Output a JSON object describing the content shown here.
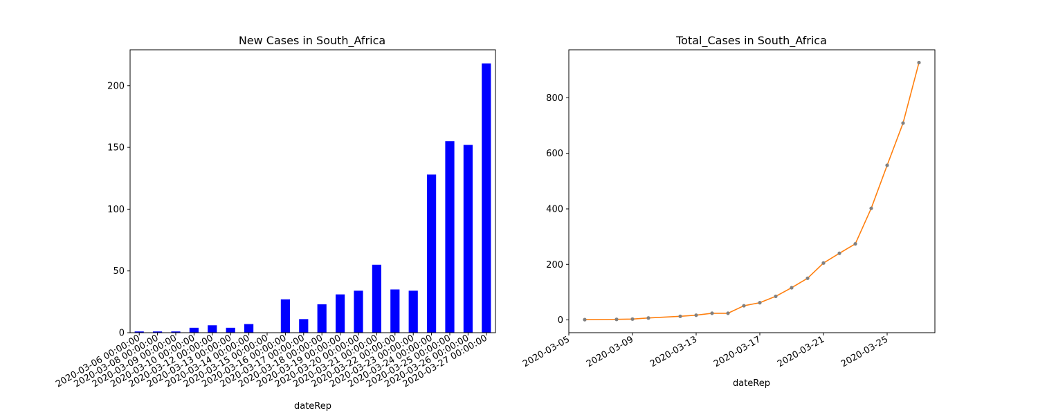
{
  "chart_data": [
    {
      "type": "bar",
      "title": "New Cases in South_Africa",
      "xlabel": "dateRep",
      "ylabel": "",
      "categories": [
        "2020-03-06 00:00:00",
        "2020-03-08 00:00:00",
        "2020-03-09 00:00:00",
        "2020-03-10 00:00:00",
        "2020-03-12 00:00:00",
        "2020-03-13 00:00:00",
        "2020-03-14 00:00:00",
        "2020-03-15 00:00:00",
        "2020-03-16 00:00:00",
        "2020-03-17 00:00:00",
        "2020-03-18 00:00:00",
        "2020-03-19 00:00:00",
        "2020-03-20 00:00:00",
        "2020-03-21 00:00:00",
        "2020-03-22 00:00:00",
        "2020-03-23 00:00:00",
        "2020-03-24 00:00:00",
        "2020-03-25 00:00:00",
        "2020-03-26 00:00:00",
        "2020-03-27 00:00:00"
      ],
      "values": [
        1,
        1,
        1,
        4,
        6,
        4,
        7,
        0,
        27,
        11,
        23,
        31,
        34,
        55,
        35,
        34,
        128,
        155,
        152,
        218
      ],
      "ylim": [
        0,
        229
      ],
      "yticks": [
        0,
        50,
        100,
        150,
        200
      ],
      "bar_color": "#0000ff",
      "grid": false
    },
    {
      "type": "line",
      "title": "Total_Cases in South_Africa",
      "xlabel": "dateRep",
      "ylabel": "",
      "x": [
        "2020-03-06",
        "2020-03-08",
        "2020-03-09",
        "2020-03-10",
        "2020-03-12",
        "2020-03-13",
        "2020-03-14",
        "2020-03-15",
        "2020-03-16",
        "2020-03-17",
        "2020-03-18",
        "2020-03-19",
        "2020-03-20",
        "2020-03-21",
        "2020-03-22",
        "2020-03-23",
        "2020-03-24",
        "2020-03-25",
        "2020-03-26",
        "2020-03-27"
      ],
      "values": [
        1,
        2,
        3,
        7,
        13,
        17,
        24,
        24,
        51,
        62,
        85,
        116,
        150,
        205,
        240,
        274,
        402,
        557,
        709,
        927
      ],
      "xlim": [
        "2020-03-05",
        "2020-03-28"
      ],
      "xticks": [
        "2020-03-05",
        "2020-03-09",
        "2020-03-13",
        "2020-03-17",
        "2020-03-21",
        "2020-03-25"
      ],
      "ylim": [
        -46,
        973
      ],
      "yticks": [
        0,
        200,
        400,
        600,
        800
      ],
      "line_color": "#ff7f0e",
      "marker_color": "#808080",
      "grid": false
    }
  ]
}
